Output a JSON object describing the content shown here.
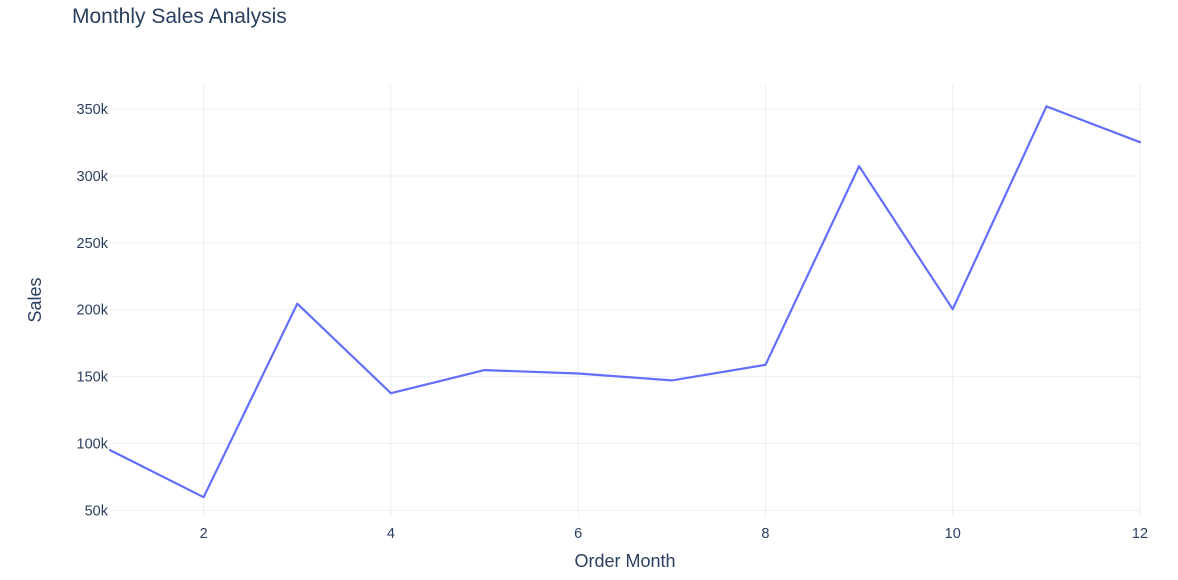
{
  "chart_data": {
    "type": "line",
    "title": "Monthly Sales Analysis",
    "xlabel": "Order Month",
    "ylabel": "Sales",
    "x": [
      1,
      2,
      3,
      4,
      5,
      6,
      7,
      8,
      9,
      10,
      11,
      12
    ],
    "series": [
      {
        "values": [
          95000,
          59800,
          204500,
          137600,
          154800,
          152300,
          147100,
          158800,
          307300,
          200400,
          352000,
          325200
        ],
        "color": "#636efa"
      }
    ],
    "xlim": [
      1,
      12
    ],
    "ylim": [
      45000,
      368000
    ],
    "xticks": [
      2,
      4,
      6,
      8,
      10,
      12
    ],
    "xtick_labels": [
      "2",
      "4",
      "6",
      "8",
      "10",
      "12"
    ],
    "yticks": [
      50000,
      100000,
      150000,
      200000,
      250000,
      300000,
      350000
    ],
    "ytick_labels": [
      "50k",
      "100k",
      "150k",
      "200k",
      "250k",
      "300k",
      "350k"
    ],
    "grid": true,
    "legend": "none"
  }
}
